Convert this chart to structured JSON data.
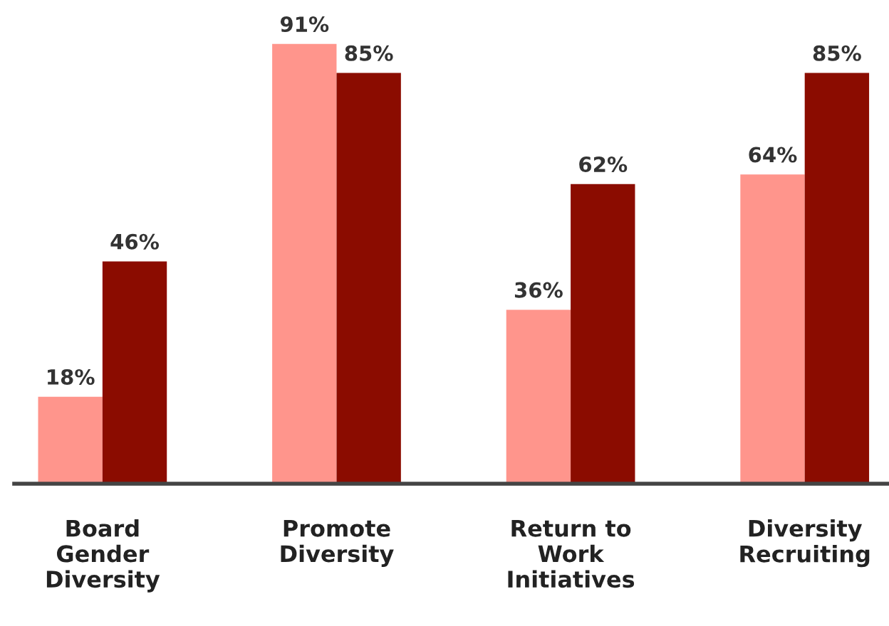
{
  "chart_data": {
    "type": "bar",
    "categories": [
      "Board\nGender\nDiversity",
      "Promote\nDiversity",
      "Return to\nWork\nInitiatives",
      "Diversity\nRecruiting"
    ],
    "series": [
      {
        "color": "#ff958c",
        "values": [
          18,
          91,
          36,
          64
        ],
        "value_labels": [
          "18%",
          "91%",
          "36%",
          "64%"
        ]
      },
      {
        "color": "#8b0c00",
        "values": [
          46,
          85,
          62,
          85
        ],
        "value_labels": [
          "46%",
          "85%",
          "62%",
          "85%"
        ]
      }
    ],
    "grid": false,
    "legend": false
  }
}
